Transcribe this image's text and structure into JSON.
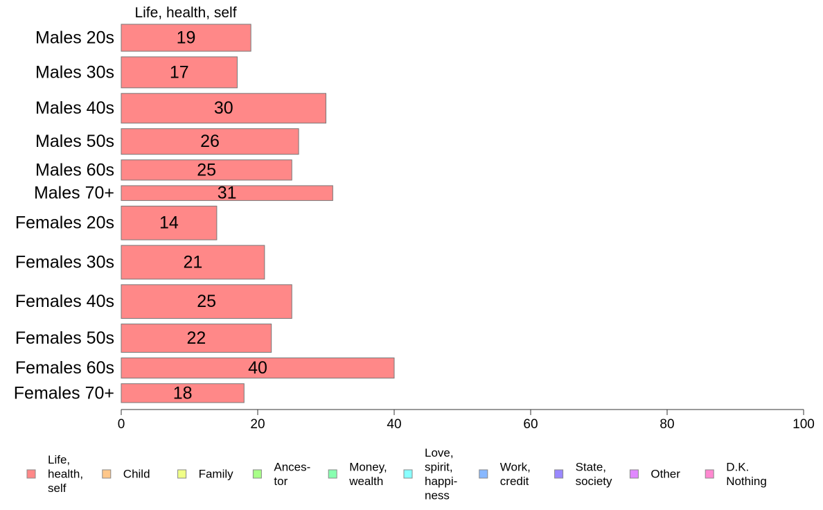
{
  "chart_data": {
    "type": "bar",
    "orientation": "horizontal",
    "title": "Life, health, self",
    "categories": [
      "Males 20s",
      "Males 30s",
      "Males 40s",
      "Males 50s",
      "Males 60s",
      "Males 70+",
      "Females 20s",
      "Females 30s",
      "Females 40s",
      "Females 50s",
      "Females 60s",
      "Females 70+"
    ],
    "series": [
      {
        "name": "Life, health, self",
        "color": "#ff8888",
        "values": [
          19,
          17,
          30,
          26,
          25,
          31,
          14,
          21,
          25,
          22,
          40,
          18
        ]
      }
    ],
    "bar_weights": [
      1.0,
      1.15,
      1.1,
      0.95,
      0.75,
      0.55,
      1.25,
      1.25,
      1.25,
      1.05,
      0.75,
      0.7
    ],
    "xlim": [
      0,
      100
    ],
    "xticks": [
      0,
      20,
      40,
      60,
      80,
      100
    ],
    "grid": false,
    "legend_position": "bottom",
    "legend": [
      {
        "lines": [
          "Life,",
          "health,",
          "self"
        ],
        "color": "#ff8888"
      },
      {
        "lines": [
          "Child"
        ],
        "color": "#ffc78a"
      },
      {
        "lines": [
          "Family"
        ],
        "color": "#f0ff88"
      },
      {
        "lines": [
          "Ances-",
          "tor"
        ],
        "color": "#a8ff88"
      },
      {
        "lines": [
          "Money,",
          "wealth"
        ],
        "color": "#88ffb0"
      },
      {
        "lines": [
          "Love,",
          "spirit,",
          "happi-",
          "ness"
        ],
        "color": "#88ffff"
      },
      {
        "lines": [
          "Work,",
          "credit"
        ],
        "color": "#88b8ff"
      },
      {
        "lines": [
          "State,",
          "society"
        ],
        "color": "#9a88ff"
      },
      {
        "lines": [
          "Other"
        ],
        "color": "#e088ff"
      },
      {
        "lines": [
          "D.K.",
          "Nothing"
        ],
        "color": "#ff88d0"
      }
    ]
  }
}
